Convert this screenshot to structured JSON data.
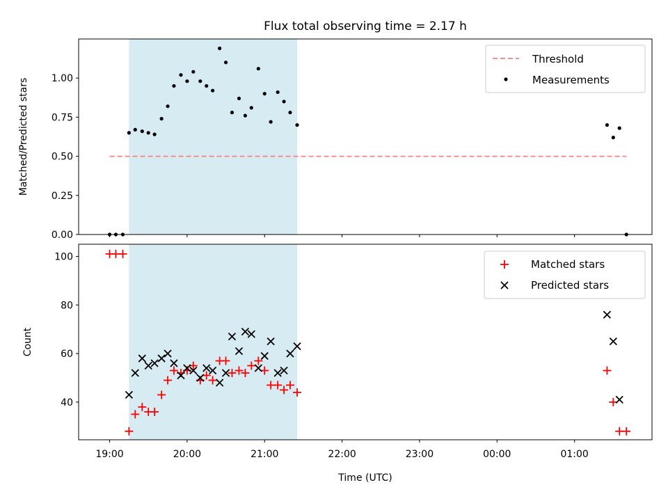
{
  "figure": {
    "title": "Flux total observing time = 2.17 h",
    "xlabel": "Time (UTC)",
    "highlight_color": "#add8e6",
    "x_ticks": [
      {
        "t": 19.0,
        "label": "19:00"
      },
      {
        "t": 20.0,
        "label": "20:00"
      },
      {
        "t": 21.0,
        "label": "21:00"
      },
      {
        "t": 22.0,
        "label": "22:00"
      },
      {
        "t": 23.0,
        "label": "23:00"
      },
      {
        "t": 24.0,
        "label": "00:00"
      },
      {
        "t": 25.0,
        "label": "01:00"
      }
    ]
  },
  "chart_data": [
    {
      "type": "scatter",
      "title": "Flux total observing time = 2.17 h",
      "xlabel": "",
      "ylabel": "Matched/Predicted stars",
      "xlim": [
        18.6,
        26.0
      ],
      "ylim": [
        0,
        1.25
      ],
      "y_ticks": [
        "0.00",
        "0.25",
        "0.50",
        "0.75",
        "1.00"
      ],
      "y_tick_values": [
        0,
        0.25,
        0.5,
        0.75,
        1.0
      ],
      "highlight_span": [
        19.25,
        21.42
      ],
      "threshold": {
        "name": "Threshold",
        "y": 0.5,
        "x": [
          19.0,
          25.67
        ],
        "color": "#ff7f7f"
      },
      "legend": {
        "position": "upper right",
        "entries": [
          "Threshold",
          "Measurements"
        ]
      },
      "series": [
        {
          "name": "Measurements",
          "marker": "dot",
          "color": "#000000",
          "x": [
            19.0,
            19.08,
            19.17,
            19.25,
            19.33,
            19.42,
            19.5,
            19.58,
            19.67,
            19.75,
            19.83,
            19.92,
            20.0,
            20.08,
            20.17,
            20.25,
            20.33,
            20.42,
            20.5,
            20.58,
            20.67,
            20.75,
            20.83,
            20.92,
            21.0,
            21.08,
            21.17,
            21.25,
            21.33,
            21.42,
            25.42,
            25.5,
            25.58,
            25.67
          ],
          "y": [
            0.0,
            0.0,
            0.0,
            0.65,
            0.67,
            0.66,
            0.65,
            0.64,
            0.74,
            0.82,
            0.95,
            1.02,
            0.98,
            1.04,
            0.98,
            0.95,
            0.92,
            1.19,
            1.1,
            0.78,
            0.87,
            0.76,
            0.81,
            1.06,
            0.9,
            0.72,
            0.91,
            0.85,
            0.78,
            0.7,
            0.7,
            0.62,
            0.68,
            0.0
          ]
        }
      ]
    },
    {
      "type": "scatter",
      "title": "",
      "xlabel": "Time (UTC)",
      "ylabel": "Count",
      "xlim": [
        18.6,
        26.0
      ],
      "ylim": [
        24.5,
        105
      ],
      "y_ticks": [
        "40",
        "60",
        "80",
        "100"
      ],
      "y_tick_values": [
        40,
        60,
        80,
        100
      ],
      "highlight_span": [
        19.25,
        21.42
      ],
      "legend": {
        "position": "upper right",
        "entries": [
          "Matched stars",
          "Predicted stars"
        ]
      },
      "series": [
        {
          "name": "Matched stars",
          "marker": "plus",
          "color": "#ff0000",
          "x": [
            19.0,
            19.08,
            19.17,
            19.25,
            19.33,
            19.42,
            19.5,
            19.58,
            19.67,
            19.75,
            19.83,
            19.92,
            20.0,
            20.08,
            20.17,
            20.25,
            20.33,
            20.42,
            20.5,
            20.58,
            20.67,
            20.75,
            20.83,
            20.92,
            21.0,
            21.08,
            21.17,
            21.25,
            21.33,
            21.42,
            25.42,
            25.5,
            25.58,
            25.67
          ],
          "y": [
            101,
            101,
            101,
            28,
            35,
            38,
            36,
            36,
            43,
            49,
            53,
            52,
            53,
            55,
            49,
            51,
            49,
            57,
            57,
            52,
            53,
            52,
            55,
            57,
            53,
            47,
            47,
            45,
            47,
            44,
            53,
            40,
            28,
            28
          ]
        },
        {
          "name": "Predicted stars",
          "marker": "x",
          "color": "#000000",
          "x": [
            19.25,
            19.33,
            19.42,
            19.5,
            19.58,
            19.67,
            19.75,
            19.83,
            19.92,
            20.0,
            20.08,
            20.17,
            20.25,
            20.33,
            20.42,
            20.5,
            20.58,
            20.67,
            20.75,
            20.83,
            20.92,
            21.0,
            21.08,
            21.17,
            21.25,
            21.33,
            21.42,
            25.42,
            25.5,
            25.58
          ],
          "y": [
            43,
            52,
            58,
            55,
            56,
            58,
            60,
            56,
            51,
            54,
            53,
            50,
            54,
            53,
            48,
            52,
            67,
            61,
            69,
            68,
            54,
            59,
            65,
            52,
            53,
            60,
            63,
            76,
            65,
            41
          ]
        }
      ]
    }
  ]
}
